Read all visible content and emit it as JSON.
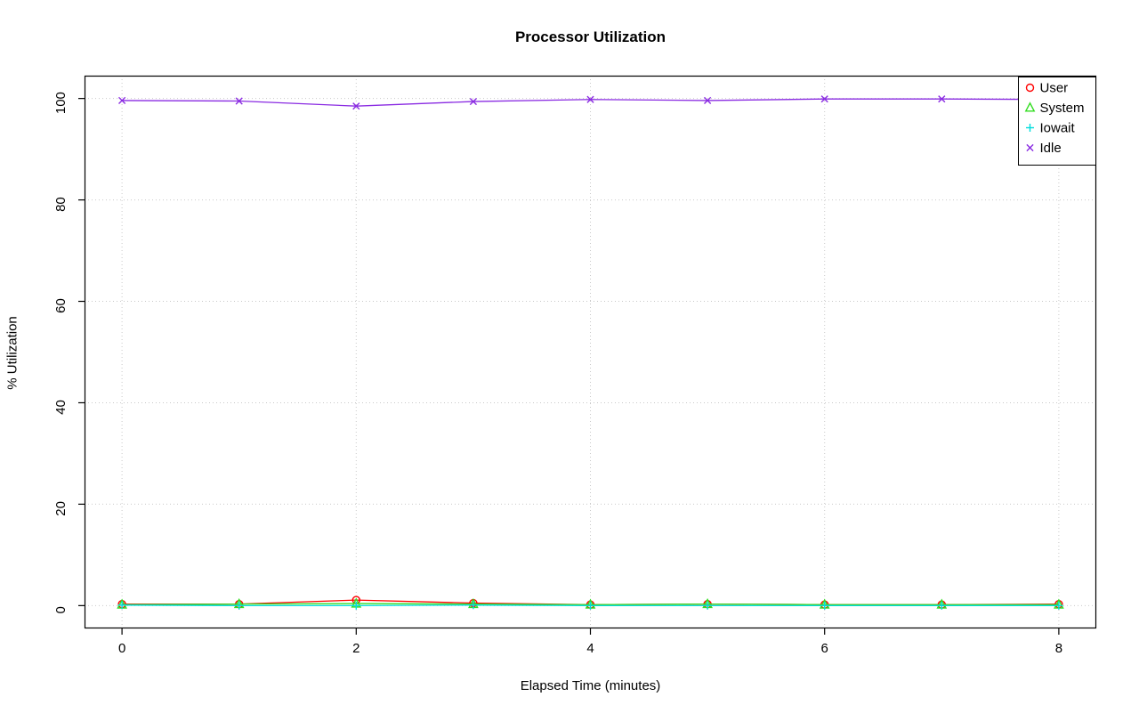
{
  "chart_data": {
    "type": "line",
    "title": "Processor Utilization",
    "xlabel": "Elapsed Time (minutes)",
    "ylabel": "% Utilization",
    "x": [
      0,
      1,
      2,
      3,
      4,
      5,
      6,
      7,
      8
    ],
    "xlim": [
      0,
      8
    ],
    "ylim": [
      0,
      100
    ],
    "xticks": [
      "0",
      "2",
      "4",
      "6",
      "8"
    ],
    "yticks": [
      "0",
      "20",
      "40",
      "60",
      "80",
      "100"
    ],
    "grid": "dotted",
    "grid_color": "#c9c9c9",
    "axis_color": "#000000",
    "legend_position": "top-right",
    "series": [
      {
        "name": "User",
        "marker": "circle",
        "marker_icon": "circle-marker-icon",
        "color": "#ff0000",
        "values": [
          0.3,
          0.3,
          1.1,
          0.5,
          0.2,
          0.3,
          0.2,
          0.2,
          0.3
        ]
      },
      {
        "name": "System",
        "marker": "triangle",
        "marker_icon": "triangle-marker-icon",
        "color": "#33dd22",
        "values": [
          0.2,
          0.3,
          0.4,
          0.3,
          0.2,
          0.3,
          0.2,
          0.2,
          0.2
        ]
      },
      {
        "name": "Iowait",
        "marker": "plus",
        "marker_icon": "plus-marker-icon",
        "color": "#00dddd",
        "values": [
          0.1,
          0.0,
          0.0,
          0.1,
          0.0,
          0.0,
          0.0,
          0.0,
          0.0
        ]
      },
      {
        "name": "Idle",
        "marker": "x",
        "marker_icon": "x-marker-icon",
        "color": "#8a2be2",
        "values": [
          99.6,
          99.5,
          98.5,
          99.4,
          99.8,
          99.6,
          99.9,
          99.9,
          99.8
        ]
      }
    ]
  }
}
